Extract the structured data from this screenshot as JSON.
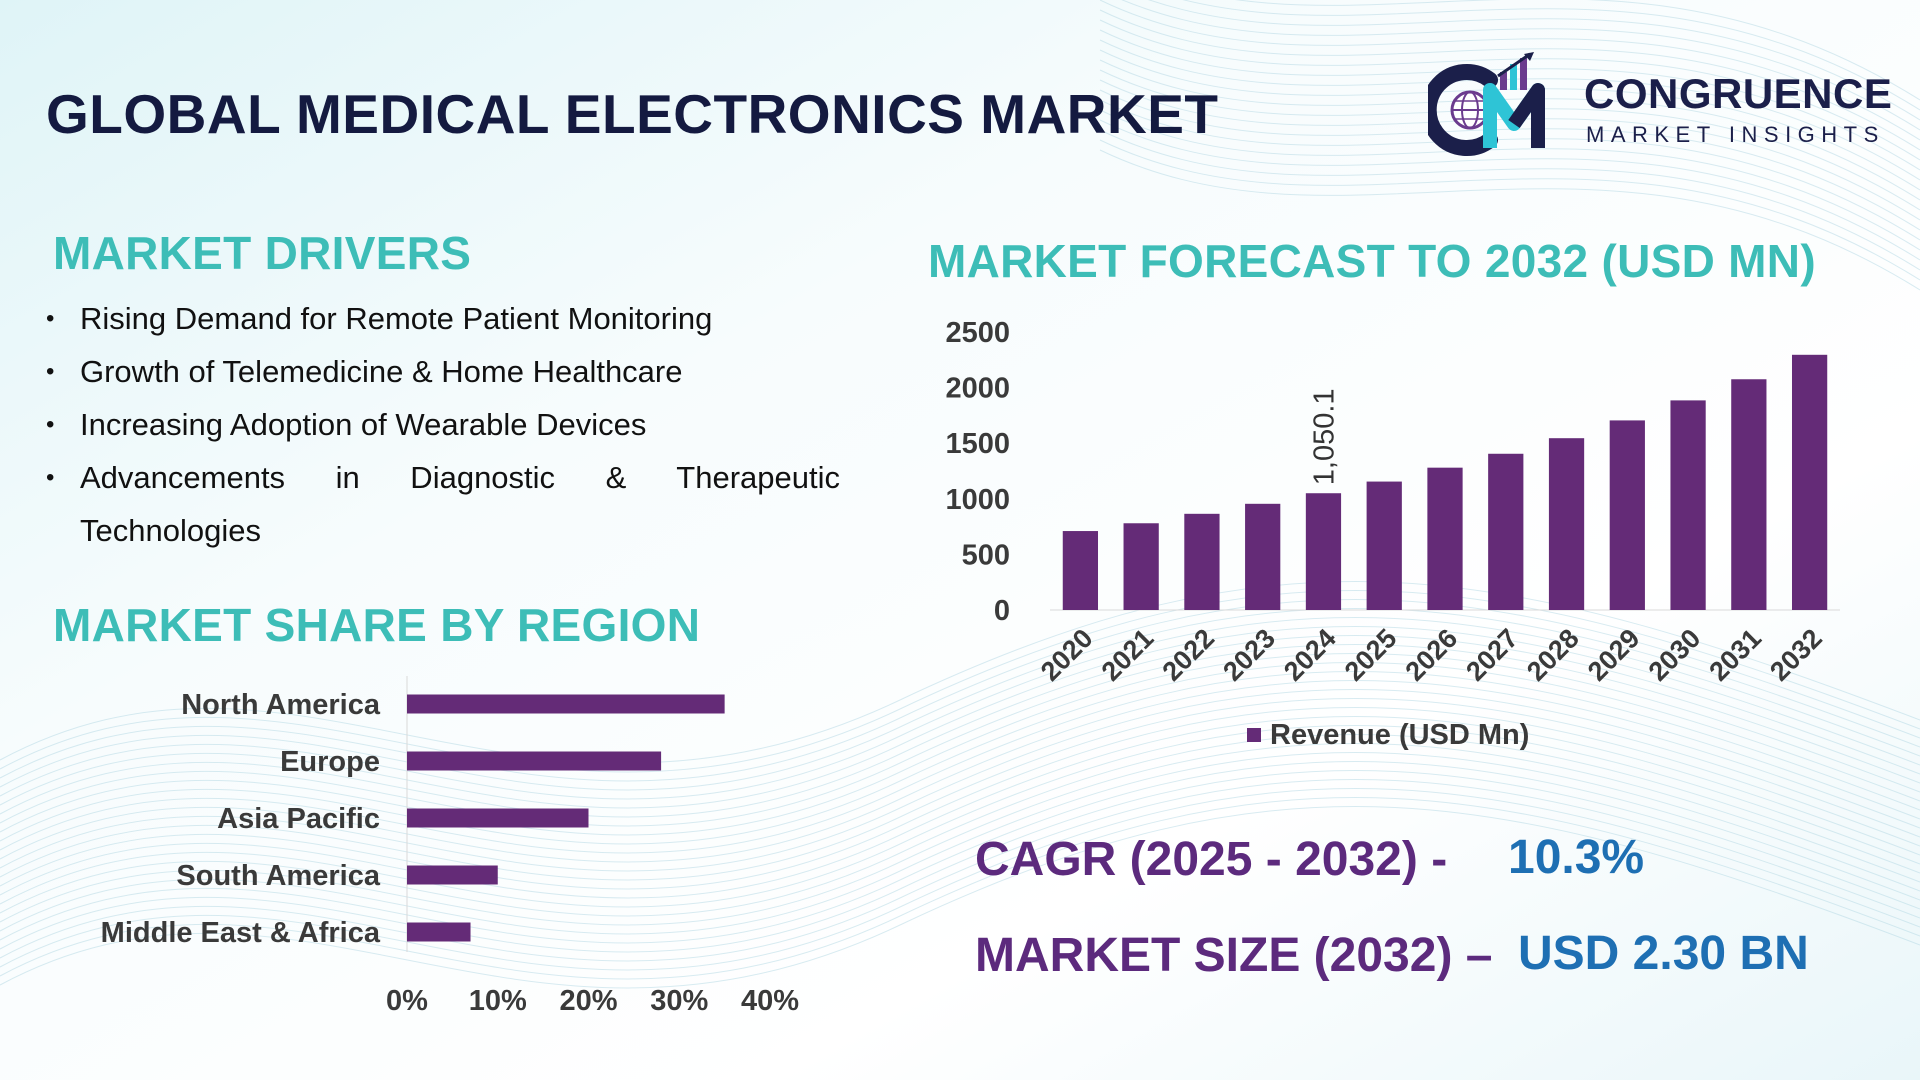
{
  "title": "GLOBAL MEDICAL ELECTRONICS MARKET",
  "logo": {
    "name": "CONGRUENCE",
    "tagline": "MARKET INSIGHTS"
  },
  "drivers": {
    "heading": "MARKET DRIVERS",
    "items": [
      "Rising Demand for Remote Patient Monitoring",
      "Growth of Telemedicine & Home Healthcare",
      "Increasing Adoption of Wearable Devices",
      "Advancements in Diagnostic & Therapeutic Technologies"
    ]
  },
  "region_section": {
    "heading": "MARKET SHARE BY REGION"
  },
  "forecast_section": {
    "heading": "MARKET FORECAST TO 2032 (USD MN)"
  },
  "stats": {
    "cagr_label": "CAGR (2025 - 2032) -",
    "cagr_value": "10.3%",
    "size_label": "MARKET SIZE (2032) –",
    "size_value": "USD 2.30 BN"
  },
  "colors": {
    "bar": "#642b77",
    "title": "#141a40",
    "heading_teal": "#3dbdb7",
    "stat_purple": "#5c2a7d",
    "stat_blue": "#1e6fb3"
  },
  "chart_data": [
    {
      "type": "bar",
      "orientation": "vertical",
      "title": "MARKET FORECAST TO 2032 (USD MN)",
      "categories": [
        "2020",
        "2021",
        "2022",
        "2023",
        "2024",
        "2025",
        "2026",
        "2027",
        "2028",
        "2029",
        "2030",
        "2031",
        "2032"
      ],
      "series": [
        {
          "name": "Revenue (USD Mn)",
          "values": [
            710,
            780,
            865,
            955,
            1050.1,
            1155,
            1280,
            1405,
            1545,
            1705,
            1885,
            2075,
            2295
          ]
        }
      ],
      "data_labels": [
        {
          "category": "2024",
          "text": "1,050.1"
        }
      ],
      "yticks": [
        "0",
        "500",
        "1000",
        "1500",
        "2000",
        "2500"
      ],
      "ylim": [
        0,
        2500
      ],
      "legend": "bottom",
      "grid": false
    },
    {
      "type": "bar",
      "orientation": "horizontal",
      "title": "MARKET SHARE BY REGION",
      "categories": [
        "North America",
        "Europe",
        "Asia Pacific",
        "South America",
        "Middle East & Africa"
      ],
      "values": [
        35,
        28,
        20,
        10,
        7
      ],
      "xticks": [
        "0%",
        "10%",
        "20%",
        "30%",
        "40%"
      ],
      "xlim": [
        0,
        40
      ],
      "grid": false
    }
  ]
}
